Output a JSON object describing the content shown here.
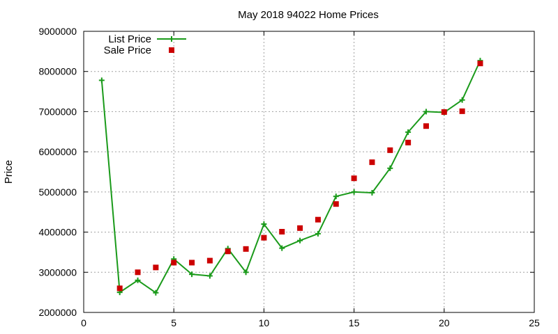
{
  "chart_data": {
    "type": "scatter",
    "title": "May 2018 94022 Home Prices",
    "xlabel": "",
    "ylabel": "Price",
    "xlim": [
      0,
      25
    ],
    "ylim": [
      2000000,
      9000000
    ],
    "xticks": [
      0,
      5,
      10,
      15,
      20,
      25
    ],
    "yticks": [
      2000000,
      3000000,
      4000000,
      5000000,
      6000000,
      7000000,
      8000000,
      9000000
    ],
    "grid": true,
    "legend_position": "top-left",
    "series": [
      {
        "name": "List Price",
        "style": "line+points",
        "marker": "plus",
        "color": "#1a9a1a",
        "x": [
          1,
          2,
          3,
          4,
          5,
          6,
          7,
          8,
          9,
          10,
          11,
          12,
          13,
          14,
          15,
          16,
          17,
          18,
          19,
          20,
          21,
          22
        ],
        "y": [
          7780000,
          2500000,
          2800000,
          2490000,
          3330000,
          2950000,
          2910000,
          3590000,
          3000000,
          4200000,
          3600000,
          3790000,
          3960000,
          4890000,
          5000000,
          4980000,
          5590000,
          6490000,
          7000000,
          6980000,
          7290000,
          8270000
        ]
      },
      {
        "name": "Sale Price",
        "style": "points",
        "marker": "square",
        "color": "#cc0000",
        "x": [
          2,
          3,
          4,
          5,
          6,
          7,
          8,
          9,
          10,
          11,
          12,
          13,
          14,
          15,
          16,
          17,
          18,
          19,
          20,
          21,
          22
        ],
        "y": [
          2600000,
          3000000,
          3120000,
          3240000,
          3240000,
          3290000,
          3520000,
          3580000,
          3860000,
          4010000,
          4100000,
          4310000,
          4700000,
          5340000,
          5740000,
          6040000,
          6230000,
          6640000,
          6990000,
          7010000,
          8200000
        ]
      }
    ]
  }
}
